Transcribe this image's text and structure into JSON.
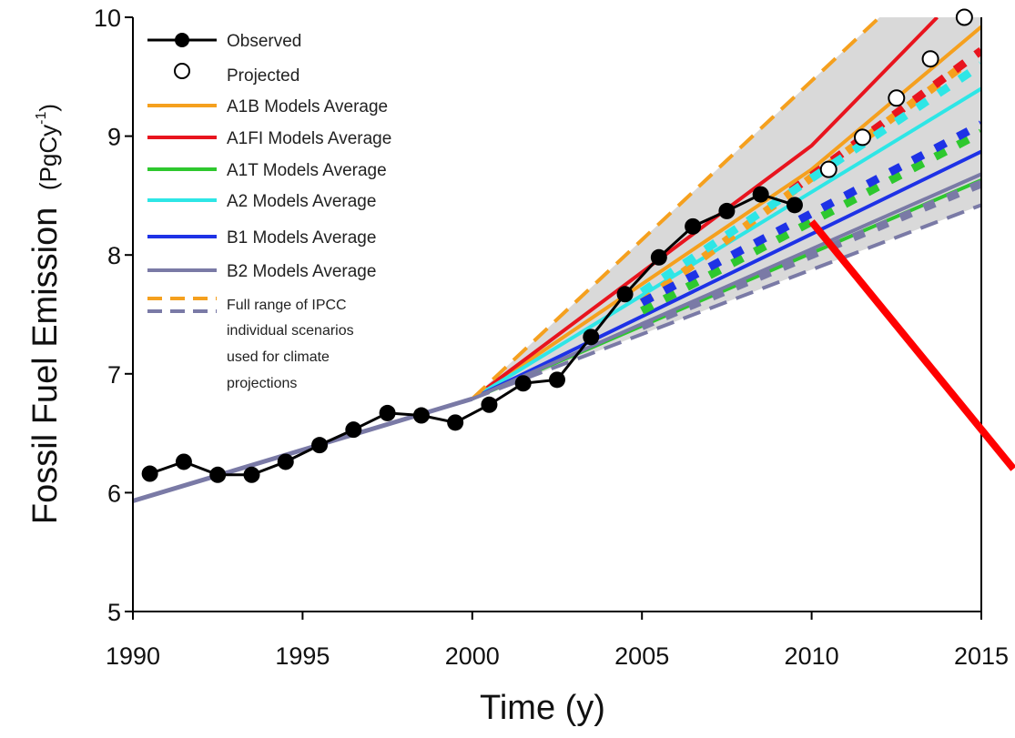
{
  "chart_data": {
    "type": "line",
    "xlabel": "Time (y)",
    "ylabel_main": "Fossil Fuel Emission",
    "ylabel_unit": "(PgCy",
    "ylabel_sup": "-1",
    "ylabel_close": ")",
    "xlim": [
      1990,
      2015
    ],
    "ylim": [
      5,
      10
    ],
    "x_ticks": [
      1990,
      1995,
      2000,
      2005,
      2010,
      2015
    ],
    "y_ticks": [
      5,
      6,
      7,
      8,
      9,
      10
    ],
    "x_tick_labels": [
      "1990",
      "1995",
      "2000",
      "2005",
      "2010",
      "2015"
    ],
    "y_tick_labels": [
      "5",
      "6",
      "7",
      "8",
      "9",
      "10"
    ],
    "legend_position": "top-left",
    "observed": {
      "name": "Observed",
      "color": "#000000",
      "x": [
        1990.5,
        1991.5,
        1992.5,
        1993.5,
        1994.5,
        1995.5,
        1996.5,
        1997.5,
        1998.5,
        1999.5,
        2000.5,
        2001.5,
        2002.5,
        2003.5,
        2004.5,
        2005.5,
        2006.5,
        2007.5,
        2008.5,
        2009.5
      ],
      "y": [
        6.16,
        6.26,
        6.15,
        6.15,
        6.26,
        6.4,
        6.53,
        6.67,
        6.65,
        6.59,
        6.74,
        6.92,
        6.95,
        7.31,
        7.67,
        7.98,
        8.24,
        8.37,
        8.51,
        8.42
      ]
    },
    "projected": {
      "name": "Projected",
      "color": "#000000",
      "x": [
        2010.5,
        2011.5,
        2012.5,
        2013.5,
        2014.5
      ],
      "y": [
        8.72,
        8.99,
        9.32,
        9.65,
        10.0
      ]
    },
    "shared_pre2000": {
      "color": "#7a7aa6",
      "x": [
        1990,
        2000
      ],
      "y": [
        5.93,
        6.79
      ]
    },
    "series": [
      {
        "name": "A1B Models Average",
        "color": "#f5a01e",
        "x": [
          2000,
          2010,
          2015
        ],
        "y": [
          6.79,
          8.72,
          9.92
        ],
        "dotted_x": [
          2005,
          2014.5
        ],
        "dotted_y": [
          7.6,
          9.6
        ]
      },
      {
        "name": "A1FI Models Average",
        "color": "#e8141e",
        "x": [
          2000,
          2010,
          2013.7
        ],
        "y": [
          6.79,
          8.92,
          10.0
        ],
        "dotted_x": [
          2009.4,
          2015
        ],
        "dotted_y": [
          8.54,
          9.72
        ]
      },
      {
        "name": "A1T Models Average",
        "color": "#2ec82e",
        "x": [
          2000,
          2015
        ],
        "y": [
          6.79,
          8.63
        ],
        "dotted_x": [
          2005,
          2015
        ],
        "dotted_y": [
          7.53,
          9.03
        ]
      },
      {
        "name": "A2 Models Average",
        "color": "#2ee6e6",
        "x": [
          2000,
          2015
        ],
        "y": [
          6.79,
          9.4
        ],
        "dotted_x": [
          2005,
          2015
        ],
        "dotted_y": [
          7.69,
          9.6
        ]
      },
      {
        "name": "B1 Models Average",
        "color": "#1e32e6",
        "x": [
          2000,
          2015
        ],
        "y": [
          6.79,
          8.87
        ],
        "dotted_x": [
          2005,
          2015
        ],
        "dotted_y": [
          7.6,
          9.1
        ]
      },
      {
        "name": "B2 Models Average",
        "color": "#7a7aa6",
        "x": [
          2000,
          2015
        ],
        "y": [
          6.79,
          8.68
        ],
        "dotted_x": [
          2005,
          2015
        ],
        "dotted_y": [
          7.4,
          8.6
        ]
      }
    ],
    "range": {
      "name_lines": [
        "Full range of IPCC",
        "individual scenarios",
        "used for climate",
        "projections"
      ],
      "upper_color": "#f5a01e",
      "lower_color": "#7a7aa6",
      "fill_color": "#d9d9d9",
      "upper_x": [
        2000,
        2012
      ],
      "upper_y": [
        6.79,
        10.0
      ],
      "lower_x": [
        2000,
        2015
      ],
      "lower_y": [
        6.79,
        8.42
      ]
    },
    "annotation_arrow": {
      "color": "#ff0000",
      "x": [
        2010,
        2015.95
      ],
      "y": [
        8.28,
        6.2
      ]
    }
  }
}
